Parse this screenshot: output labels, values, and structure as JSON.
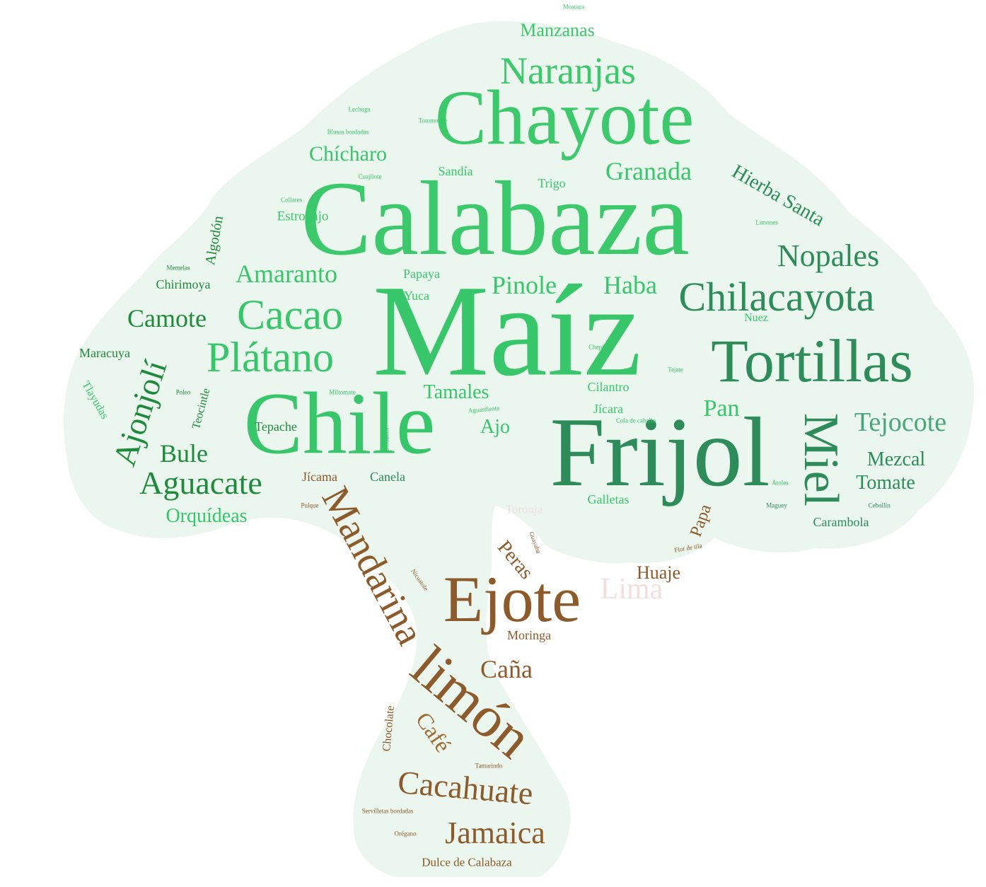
{
  "colors": {
    "background": "#ffffff",
    "silhouette": "#eaf6ee",
    "leaf_bright": "#37c76a",
    "leaf_medium": "#27a85a",
    "leaf_dark": "#2e8b5a",
    "leaf_deep": "#1f8a3c",
    "trunk_brown": "#8c5a2b",
    "trunk_light": "#a06a34",
    "faded_pink": "#f3dede"
  },
  "words": {
    "maiz": "Maíz",
    "calabaza": "Calabaza",
    "chayote": "Chayote",
    "frijol": "Frijol",
    "chile": "Chile",
    "tortillas": "Tortillas",
    "ejote": "Ejote",
    "limon": "limón",
    "mandarina": "Mandarina",
    "miel": "Miel",
    "cacao": "Cacao",
    "platano": "Plátano",
    "chilacayota": "Chilacayota",
    "naranjas": "Naranjas",
    "nopales": "Nopales",
    "aguacate": "Aguacate",
    "ajonjoli": "Ajonjolí",
    "cacahuate": "Cacahuate",
    "jamaica": "Jamaica",
    "amaranto": "Amaranto",
    "granada": "Granada",
    "hierba_santa": "Hierba Santa",
    "manzanas": "Manzanas",
    "pinole": "Pinole",
    "haba": "Haba",
    "camote": "Camote",
    "tejocote": "Tejocote",
    "chicharo": "Chícharo",
    "bule": "Bule",
    "tamales": "Tamales",
    "pan": "Pan",
    "mezcal": "Mezcal",
    "tomate": "Tomate",
    "orquideas": "Orquídeas",
    "cana": "Caña",
    "cafe": "Café",
    "peras": "Peras",
    "huaje": "Huaje",
    "papa": "Papa",
    "lima": "Lima",
    "ajo": "Ajo",
    "estropajo": "Estropajo",
    "chirimoya": "Chirimoya",
    "algodon": "Algodón",
    "sandia": "Sandía",
    "trigo": "Trigo",
    "papaya": "Papaya",
    "yuca": "Yuca",
    "cilantro": "Cilantro",
    "jicara": "Jícara",
    "tepache": "Tepache",
    "jicama": "Jícama",
    "canela": "Canela",
    "galletas": "Galletas",
    "carambola": "Carambola",
    "maracuya": "Maracuya",
    "tlayudas": "Tlayudas",
    "teocintle": "Teocintle",
    "moringa": "Moringa",
    "chocolate": "Chocolate",
    "dulce_de_calabaza": "Dulce de Calabaza",
    "nuez": "Nuez",
    "toronja": "Toronja",
    "mostaza": "Mostaza",
    "lechuga": "Lechuga",
    "totomostle": "Totomostle",
    "blusas_bordadas": "Blusas bordadas",
    "cuajilote": "Cuajilote",
    "collares": "Collares",
    "limones": "Limones",
    "memelas": "Memelas",
    "chepil": "Chepil",
    "tejate": "Tejate",
    "miltomate": "Miltomate",
    "poleo": "Poleo",
    "aguardiente": "Aguardiente",
    "cola_de_caballo": "Cola de caballo",
    "garbanzo": "Garbanzo",
    "atoles": "Atoles",
    "maguey": "Maguey",
    "cebollin": "Cebollín",
    "pulque": "Pulque",
    "guayaba": "Guayaba",
    "flor_de_tila": "Flor de tila",
    "nicuatole": "Nicuatole",
    "tamarindo": "Tamarindo",
    "servilletas_bordadas": "Servilletas bordadas",
    "oregano": "Orégano"
  }
}
